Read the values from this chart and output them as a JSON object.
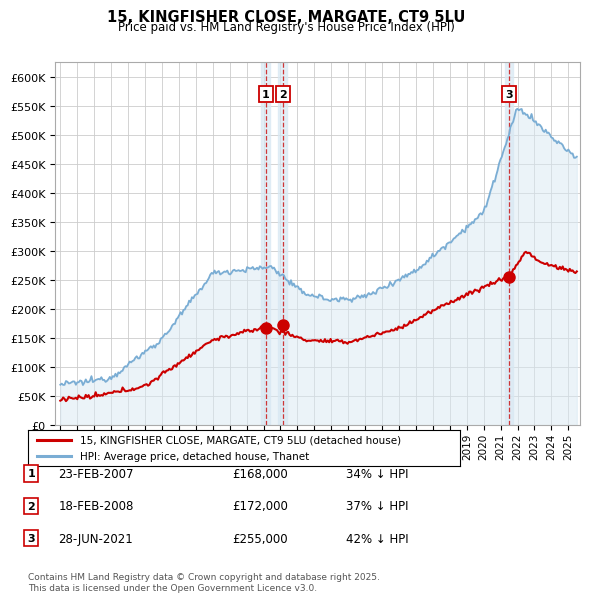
{
  "title": "15, KINGFISHER CLOSE, MARGATE, CT9 5LU",
  "subtitle": "Price paid vs. HM Land Registry's House Price Index (HPI)",
  "ylim": [
    0,
    625000
  ],
  "yticks": [
    0,
    50000,
    100000,
    150000,
    200000,
    250000,
    300000,
    350000,
    400000,
    450000,
    500000,
    550000,
    600000
  ],
  "ytick_labels": [
    "£0",
    "£50K",
    "£100K",
    "£150K",
    "£200K",
    "£250K",
    "£300K",
    "£350K",
    "£400K",
    "£450K",
    "£500K",
    "£550K",
    "£600K"
  ],
  "xlim_start": 1994.7,
  "xlim_end": 2025.7,
  "hpi_color": "#7aadd4",
  "hpi_fill_color": "#d8e8f3",
  "price_color": "#cc0000",
  "vline_color": "#cc2222",
  "background_color": "#ffffff",
  "grid_color": "#cccccc",
  "sales": [
    {
      "label": "1",
      "date_dec": 2007.13,
      "price": 168000,
      "date_str": "23-FEB-2007",
      "pct": "34%"
    },
    {
      "label": "2",
      "date_dec": 2008.13,
      "price": 172000,
      "date_str": "18-FEB-2008",
      "pct": "37%"
    },
    {
      "label": "3",
      "date_dec": 2021.49,
      "price": 255000,
      "date_str": "28-JUN-2021",
      "pct": "42%"
    }
  ],
  "footnote": "Contains HM Land Registry data © Crown copyright and database right 2025.\nThis data is licensed under the Open Government Licence v3.0.",
  "legend_line1": "15, KINGFISHER CLOSE, MARGATE, CT9 5LU (detached house)",
  "legend_line2": "HPI: Average price, detached house, Thanet"
}
